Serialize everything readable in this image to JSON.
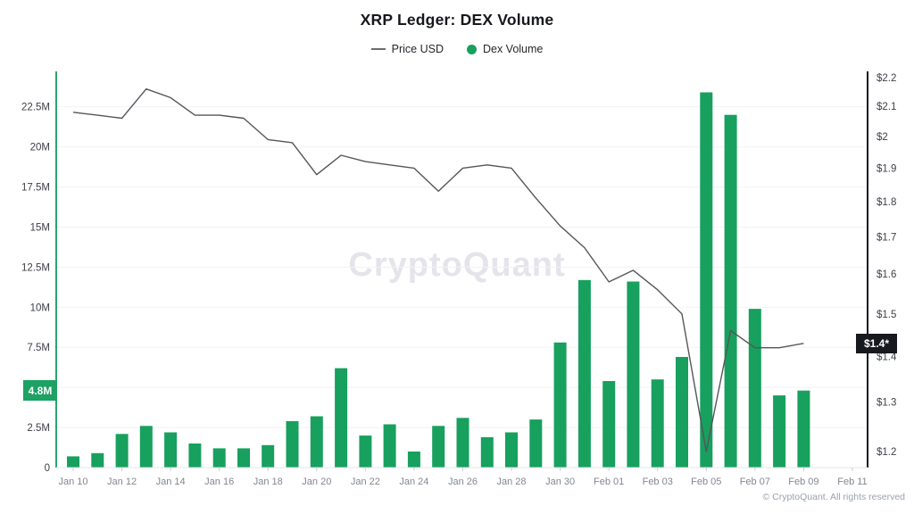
{
  "title": "XRP Ledger: DEX Volume",
  "legend": [
    {
      "label": "Price USD",
      "type": "line",
      "color": "#6b6b70"
    },
    {
      "label": "Dex Volume",
      "type": "dot",
      "color": "#17A05E"
    }
  ],
  "badges": {
    "volume": {
      "text": "4.8M",
      "value": 4.8,
      "color": "#1CA263"
    },
    "price": {
      "text": "$1.4*",
      "value": 1.43,
      "color": "#17191e"
    }
  },
  "watermark": "CryptoQuant",
  "footer": "© CryptoQuant. All rights reserved",
  "chart_data": {
    "type": "bar",
    "title": "XRP Ledger: DEX Volume",
    "x": [
      "Jan 10",
      "Jan 11",
      "Jan 12",
      "Jan 13",
      "Jan 14",
      "Jan 15",
      "Jan 16",
      "Jan 17",
      "Jan 18",
      "Jan 19",
      "Jan 20",
      "Jan 21",
      "Jan 22",
      "Jan 23",
      "Jan 24",
      "Jan 25",
      "Jan 26",
      "Jan 27",
      "Jan 28",
      "Jan 29",
      "Jan 30",
      "Jan 31",
      "Feb 01",
      "Feb 02",
      "Feb 03",
      "Feb 04",
      "Feb 05",
      "Feb 06",
      "Feb 07",
      "Feb 08",
      "Feb 09"
    ],
    "series": [
      {
        "name": "Price USD",
        "type": "line",
        "axis": "right",
        "unit": "USD",
        "color": "#55565a",
        "values": [
          2.08,
          2.07,
          2.06,
          2.16,
          2.13,
          2.07,
          2.07,
          2.06,
          1.99,
          1.98,
          1.88,
          1.94,
          1.92,
          1.91,
          1.9,
          1.83,
          1.9,
          1.91,
          1.9,
          1.81,
          1.73,
          1.67,
          1.58,
          1.61,
          1.56,
          1.5,
          1.2,
          1.46,
          1.42,
          1.42,
          1.43
        ]
      },
      {
        "name": "Dex Volume",
        "type": "bar",
        "axis": "left",
        "unit": "millions",
        "color": "#17A05E",
        "values": [
          0.7,
          0.9,
          2.1,
          2.6,
          2.2,
          1.5,
          1.2,
          1.2,
          1.4,
          2.9,
          3.2,
          6.2,
          2.0,
          2.7,
          1.0,
          2.6,
          3.1,
          1.9,
          2.2,
          3.0,
          7.8,
          11.7,
          5.4,
          11.6,
          5.5,
          6.9,
          23.4,
          22.0,
          9.9,
          4.5,
          4.8
        ]
      }
    ],
    "left_axis": {
      "unit": "millions",
      "range": [
        0,
        24.7
      ],
      "grid_values": [
        2.5,
        5,
        7.5,
        10,
        12.5,
        15,
        17.5,
        20,
        22.5
      ],
      "ticks": [
        {
          "label": "0",
          "value": 0
        },
        {
          "label": "2.5M",
          "value": 2.5
        },
        {
          "label": "7.5M",
          "value": 7.5
        },
        {
          "label": "10M",
          "value": 10
        },
        {
          "label": "12.5M",
          "value": 12.5
        },
        {
          "label": "15M",
          "value": 15
        },
        {
          "label": "17.5M",
          "value": 17.5
        },
        {
          "label": "20M",
          "value": 20
        },
        {
          "label": "22.5M",
          "value": 22.5
        }
      ]
    },
    "right_axis": {
      "unit": "USD",
      "scale": "log",
      "range": [
        1.17,
        2.23
      ],
      "ticks": [
        {
          "label": "$1.2",
          "value": 1.2
        },
        {
          "label": "$1.3",
          "value": 1.3
        },
        {
          "label": "$1.4",
          "value": 1.4
        },
        {
          "label": "$1.5",
          "value": 1.5
        },
        {
          "label": "$1.6",
          "value": 1.6
        },
        {
          "label": "$1.7",
          "value": 1.7
        },
        {
          "label": "$1.8",
          "value": 1.8
        },
        {
          "label": "$1.9",
          "value": 1.9
        },
        {
          "label": "$2",
          "value": 2.0
        },
        {
          "label": "$2.1",
          "value": 2.1
        },
        {
          "label": "$2.2",
          "value": 2.2
        }
      ]
    },
    "x_tick_labels": [
      "Jan 10",
      "Jan 12",
      "Jan 14",
      "Jan 16",
      "Jan 18",
      "Jan 20",
      "Jan 22",
      "Jan 24",
      "Jan 26",
      "Jan 28",
      "Jan 30",
      "Feb 01",
      "Feb 03",
      "Feb 05",
      "Feb 07",
      "Feb 09",
      "Feb 11"
    ],
    "grid": "horizontal",
    "legend_position": "top"
  }
}
